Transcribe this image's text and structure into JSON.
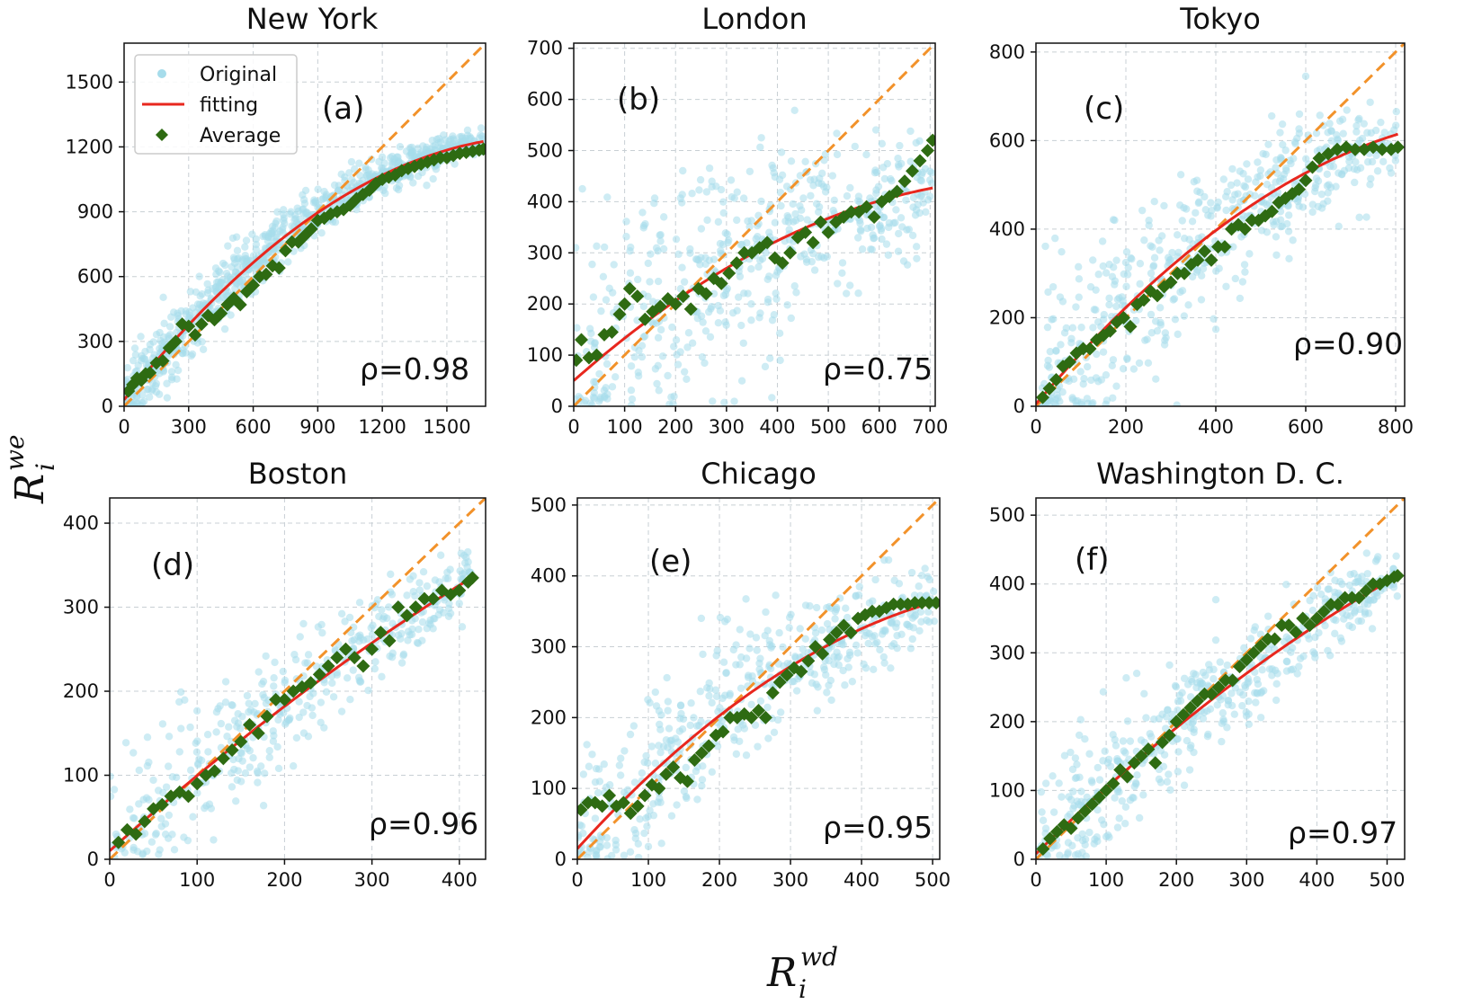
{
  "figure": {
    "xlabel": {
      "main": "R",
      "sub": "i",
      "sup": "wd"
    },
    "ylabel": {
      "main": "R",
      "sub": "i",
      "sup": "we"
    }
  },
  "legend": {
    "entries": [
      {
        "label": "Original",
        "kind": "scatter",
        "color": "#a6dceb"
      },
      {
        "label": "fitting",
        "kind": "line",
        "color": "#e8271e"
      },
      {
        "label": "Average",
        "kind": "diamond",
        "color": "#2e6b12"
      }
    ]
  },
  "colors": {
    "original": "#a6dceb",
    "fitting": "#e8271e",
    "average": "#2e6b12",
    "diagonal": "#f2922a",
    "grid": "#c8cfd4"
  },
  "chart_data": [
    {
      "type": "scatter",
      "title": "New York",
      "label": "(a)",
      "rho": "ρ=0.98",
      "xlim": [
        0,
        1680
      ],
      "ylim": [
        0,
        1680
      ],
      "xticks": [
        0,
        300,
        600,
        900,
        1200,
        1500
      ],
      "yticks": [
        0,
        300,
        600,
        900,
        1200,
        1500
      ],
      "fit": {
        "model": "quadratic",
        "a": 0,
        "b": 30,
        "c": 1.25,
        "d": -0.00032
      },
      "noise_scale": 0.05,
      "n_original": 900,
      "average_x": [
        20,
        40,
        60,
        80,
        100,
        120,
        150,
        180,
        210,
        240,
        270,
        300,
        330,
        360,
        390,
        420,
        450,
        480,
        510,
        540,
        570,
        600,
        630,
        660,
        690,
        720,
        750,
        780,
        810,
        840,
        870,
        900,
        930,
        960,
        990,
        1020,
        1050,
        1080,
        1110,
        1140,
        1170,
        1200,
        1230,
        1260,
        1290,
        1320,
        1350,
        1380,
        1410,
        1440,
        1470,
        1500,
        1530,
        1560,
        1590,
        1620,
        1650,
        1670
      ],
      "average_y": [
        70,
        100,
        130,
        120,
        150,
        155,
        200,
        210,
        270,
        300,
        380,
        370,
        330,
        380,
        420,
        400,
        430,
        470,
        500,
        470,
        530,
        560,
        600,
        610,
        650,
        640,
        720,
        760,
        760,
        790,
        820,
        860,
        870,
        890,
        900,
        910,
        930,
        960,
        980,
        1000,
        1030,
        1050,
        1060,
        1070,
        1090,
        1100,
        1110,
        1120,
        1130,
        1140,
        1150,
        1150,
        1160,
        1170,
        1175,
        1180,
        1185,
        1190
      ]
    },
    {
      "type": "scatter",
      "title": "London",
      "label": "(b)",
      "rho": "ρ=0.75",
      "xlim": [
        0,
        710
      ],
      "ylim": [
        0,
        710
      ],
      "xticks": [
        0,
        100,
        200,
        300,
        400,
        500,
        600,
        700
      ],
      "yticks": [
        0,
        100,
        200,
        300,
        400,
        500,
        600,
        700
      ],
      "fit": {
        "model": "quadratic",
        "a": 0,
        "b": 50,
        "c": 0.88,
        "d": -0.00049
      },
      "noise_scale": 0.22,
      "n_original": 500,
      "average_x": [
        5,
        15,
        30,
        45,
        60,
        75,
        90,
        100,
        110,
        125,
        140,
        155,
        170,
        185,
        200,
        215,
        230,
        245,
        260,
        275,
        290,
        305,
        320,
        335,
        350,
        365,
        380,
        395,
        410,
        425,
        440,
        455,
        470,
        485,
        500,
        515,
        530,
        545,
        560,
        575,
        590,
        605,
        620,
        635,
        650,
        665,
        680,
        695,
        705
      ],
      "average_y": [
        90,
        130,
        95,
        100,
        140,
        145,
        180,
        200,
        230,
        215,
        170,
        185,
        195,
        210,
        200,
        215,
        190,
        230,
        220,
        250,
        240,
        260,
        280,
        300,
        300,
        310,
        320,
        290,
        280,
        300,
        330,
        340,
        320,
        360,
        340,
        360,
        370,
        380,
        380,
        390,
        370,
        400,
        410,
        420,
        440,
        460,
        480,
        500,
        520
      ]
    },
    {
      "type": "scatter",
      "title": "Tokyo",
      "label": "(c)",
      "rho": "ρ=0.90",
      "xlim": [
        0,
        820
      ],
      "ylim": [
        0,
        820
      ],
      "xticks": [
        0,
        200,
        400,
        600,
        800
      ],
      "yticks": [
        0,
        200,
        400,
        600,
        800
      ],
      "fit": {
        "model": "quadratic",
        "a": 0,
        "b": 5,
        "c": 1.2,
        "d": -0.00055
      },
      "noise_scale": 0.16,
      "n_original": 520,
      "average_x": [
        15,
        30,
        45,
        60,
        75,
        90,
        105,
        120,
        135,
        150,
        165,
        180,
        195,
        210,
        225,
        240,
        255,
        270,
        285,
        300,
        315,
        330,
        345,
        360,
        375,
        390,
        405,
        420,
        435,
        450,
        465,
        480,
        495,
        510,
        525,
        540,
        555,
        570,
        585,
        600,
        615,
        630,
        650,
        670,
        690,
        710,
        730,
        750,
        770,
        790,
        805
      ],
      "average_y": [
        20,
        40,
        60,
        90,
        100,
        120,
        130,
        130,
        150,
        160,
        170,
        190,
        200,
        180,
        230,
        240,
        260,
        250,
        270,
        280,
        300,
        300,
        320,
        330,
        350,
        330,
        360,
        360,
        400,
        410,
        400,
        420,
        420,
        430,
        440,
        460,
        470,
        480,
        490,
        510,
        540,
        560,
        570,
        580,
        585,
        580,
        580,
        585,
        580,
        580,
        585
      ]
    },
    {
      "type": "scatter",
      "title": "Boston",
      "label": "(d)",
      "rho": "ρ=0.96",
      "xlim": [
        0,
        430
      ],
      "ylim": [
        0,
        430
      ],
      "xticks": [
        0,
        100,
        200,
        300,
        400
      ],
      "yticks": [
        0,
        100,
        200,
        300,
        400
      ],
      "fit": {
        "model": "quadratic",
        "a": 0,
        "b": 10,
        "c": 0.93,
        "d": -0.00035
      },
      "noise_scale": 0.12,
      "n_original": 420,
      "average_x": [
        10,
        20,
        30,
        40,
        50,
        60,
        70,
        80,
        90,
        100,
        110,
        120,
        130,
        140,
        150,
        160,
        170,
        180,
        190,
        200,
        210,
        220,
        230,
        240,
        250,
        260,
        270,
        280,
        290,
        300,
        310,
        320,
        330,
        340,
        350,
        360,
        370,
        380,
        390,
        400,
        410,
        415
      ],
      "average_y": [
        20,
        35,
        30,
        45,
        60,
        65,
        75,
        80,
        75,
        90,
        100,
        105,
        120,
        130,
        140,
        160,
        150,
        170,
        190,
        190,
        200,
        205,
        210,
        220,
        230,
        240,
        250,
        240,
        230,
        250,
        270,
        260,
        300,
        290,
        300,
        310,
        310,
        320,
        315,
        320,
        330,
        335
      ]
    },
    {
      "type": "scatter",
      "title": "Chicago",
      "label": "(e)",
      "rho": "ρ=0.95",
      "xlim": [
        0,
        510
      ],
      "ylim": [
        0,
        510
      ],
      "xticks": [
        0,
        100,
        200,
        300,
        400,
        500
      ],
      "yticks": [
        0,
        100,
        200,
        300,
        400,
        500
      ],
      "fit": {
        "model": "quadratic",
        "a": 0,
        "b": 15,
        "c": 1.1,
        "d": -0.00081
      },
      "noise_scale": 0.14,
      "n_original": 480,
      "average_x": [
        5,
        15,
        25,
        35,
        45,
        55,
        65,
        75,
        85,
        95,
        105,
        115,
        125,
        135,
        145,
        155,
        165,
        175,
        185,
        195,
        205,
        215,
        225,
        235,
        245,
        255,
        265,
        275,
        285,
        295,
        305,
        315,
        325,
        335,
        345,
        355,
        365,
        375,
        385,
        395,
        405,
        415,
        425,
        435,
        445,
        455,
        465,
        475,
        485,
        495,
        505
      ],
      "average_y": [
        70,
        80,
        80,
        75,
        90,
        75,
        80,
        65,
        75,
        90,
        105,
        100,
        120,
        130,
        115,
        110,
        140,
        150,
        160,
        175,
        180,
        200,
        200,
        205,
        200,
        210,
        200,
        235,
        250,
        260,
        270,
        265,
        280,
        300,
        290,
        310,
        320,
        330,
        320,
        340,
        345,
        350,
        350,
        355,
        360,
        360,
        360,
        362,
        362,
        362,
        362
      ]
    },
    {
      "type": "scatter",
      "title": "Washington D. C.",
      "label": "(f)",
      "rho": "ρ=0.97",
      "xlim": [
        0,
        525
      ],
      "ylim": [
        0,
        525
      ],
      "xticks": [
        0,
        100,
        200,
        300,
        400,
        500
      ],
      "yticks": [
        0,
        100,
        200,
        300,
        400,
        500
      ],
      "fit": {
        "model": "quadratic",
        "a": 0,
        "b": 8,
        "c": 1.0,
        "d": -0.00042
      },
      "noise_scale": 0.11,
      "n_original": 470,
      "average_x": [
        10,
        20,
        30,
        40,
        50,
        60,
        70,
        80,
        90,
        100,
        110,
        120,
        130,
        140,
        150,
        160,
        170,
        180,
        190,
        200,
        210,
        220,
        230,
        240,
        250,
        260,
        270,
        280,
        290,
        300,
        310,
        320,
        330,
        340,
        350,
        360,
        370,
        380,
        390,
        400,
        410,
        420,
        430,
        440,
        450,
        460,
        470,
        480,
        490,
        500,
        510,
        515
      ],
      "average_y": [
        15,
        30,
        40,
        50,
        45,
        60,
        70,
        80,
        90,
        100,
        110,
        130,
        120,
        140,
        150,
        160,
        140,
        170,
        180,
        200,
        210,
        220,
        230,
        240,
        240,
        250,
        260,
        260,
        280,
        290,
        300,
        310,
        320,
        320,
        340,
        340,
        330,
        350,
        340,
        350,
        360,
        370,
        370,
        380,
        380,
        380,
        390,
        400,
        400,
        405,
        410,
        412
      ]
    }
  ]
}
